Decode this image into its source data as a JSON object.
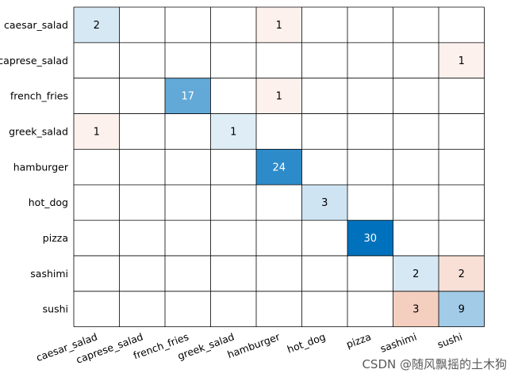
{
  "chart_data": {
    "type": "heatmap",
    "rows": [
      "caesar_salad",
      "caprese_salad",
      "french_fries",
      "greek_salad",
      "hamburger",
      "hot_dog",
      "pizza",
      "sashimi",
      "sushi"
    ],
    "columns": [
      "caesar_salad",
      "caprese_salad",
      "french_fries",
      "greek_salad",
      "hamburger",
      "hot_dog",
      "pizza",
      "sashimi",
      "sushi"
    ],
    "cells": [
      {
        "row": 0,
        "col": 0,
        "value": 2
      },
      {
        "row": 0,
        "col": 4,
        "value": 1
      },
      {
        "row": 1,
        "col": 8,
        "value": 1
      },
      {
        "row": 2,
        "col": 2,
        "value": 17
      },
      {
        "row": 2,
        "col": 4,
        "value": 1
      },
      {
        "row": 3,
        "col": 0,
        "value": 1
      },
      {
        "row": 3,
        "col": 3,
        "value": 1
      },
      {
        "row": 4,
        "col": 4,
        "value": 24
      },
      {
        "row": 5,
        "col": 5,
        "value": 3
      },
      {
        "row": 6,
        "col": 6,
        "value": 30
      },
      {
        "row": 7,
        "col": 7,
        "value": 2
      },
      {
        "row": 7,
        "col": 8,
        "value": 2
      },
      {
        "row": 8,
        "col": 7,
        "value": 3
      },
      {
        "row": 8,
        "col": 8,
        "value": 9
      }
    ],
    "colors": {
      "correct": "#0072bd",
      "error": "#d95319",
      "grid": "#000000"
    },
    "grid": true,
    "max_value": 30
  },
  "watermark": "CSDN @随风飘摇的土木狗"
}
